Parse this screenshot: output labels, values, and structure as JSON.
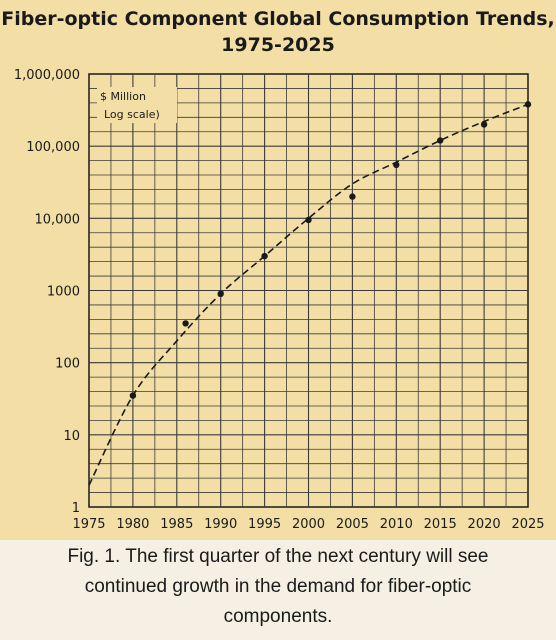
{
  "chart_data": {
    "type": "line",
    "title_line1": "Fiber-optic Component Global Consumption Trends,",
    "title_line2": "1975-2025",
    "units_label_line1": "$ Million",
    "units_label_line2": "Log scale)",
    "y_scale": "log",
    "ylim": [
      1,
      1000000
    ],
    "xlim": [
      1975,
      2025
    ],
    "x_tick_labels": [
      "1975",
      "1980",
      "1985",
      "1990",
      "1995",
      "2000",
      "2005",
      "2010",
      "2015",
      "2020",
      "2025"
    ],
    "y_tick_labels": [
      "1,000,000",
      "100,000",
      "10,000",
      "1000",
      "100",
      "10",
      "1"
    ],
    "grid": true,
    "series": [
      {
        "style": "points",
        "x": [
          1980,
          1986,
          1990,
          1995,
          2000,
          2005,
          2010,
          2015,
          2020,
          2025
        ],
        "y": [
          35,
          350,
          900,
          3000,
          9500,
          20000,
          55000,
          120000,
          200000,
          380000
        ]
      },
      {
        "style": "dashed-trend",
        "x": [
          1975,
          1980,
          1985,
          1990,
          1995,
          2000,
          2005,
          2010,
          2015,
          2020,
          2025
        ],
        "y": [
          2,
          35,
          200,
          900,
          3000,
          10000,
          30000,
          60000,
          120000,
          220000,
          380000
        ]
      }
    ]
  },
  "caption": {
    "line1": "Fig. 1. The first quarter of the next century will see",
    "line2": "continued growth in the demand for fiber-optic",
    "line3": "components."
  },
  "colors": {
    "figure_background": "#f3dfa6",
    "grid": "#3a3a3a",
    "ink": "#1a1a1a",
    "caption_background": "#f5f0e3"
  }
}
